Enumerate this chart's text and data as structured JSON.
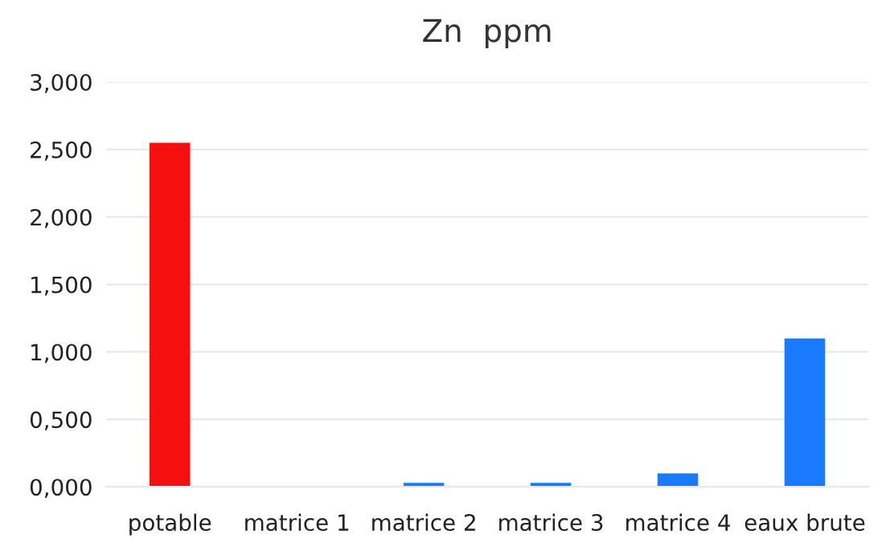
{
  "chart_data": {
    "type": "bar",
    "title": "Zn  ppm",
    "categories": [
      "potable",
      "matrice 1",
      "matrice 2",
      "matrice 3",
      "matrice 4",
      "eaux brute"
    ],
    "values": [
      2.55,
      0,
      0.03,
      0.03,
      0.1,
      1.1
    ],
    "colors": [
      "#f50f0f",
      "#1a7aff",
      "#1a7aff",
      "#1a7aff",
      "#1a7aff",
      "#1a7aff"
    ],
    "ylim": [
      0,
      3
    ],
    "yticks": [
      {
        "value": 0,
        "label": "0,000"
      },
      {
        "value": 0.5,
        "label": "0,500"
      },
      {
        "value": 1,
        "label": "1,000"
      },
      {
        "value": 1.5,
        "label": "1,500"
      },
      {
        "value": 2,
        "label": "2,000"
      },
      {
        "value": 2.5,
        "label": "2,500"
      },
      {
        "value": 3,
        "label": "3,000"
      }
    ],
    "grid": "y",
    "legend": false
  }
}
